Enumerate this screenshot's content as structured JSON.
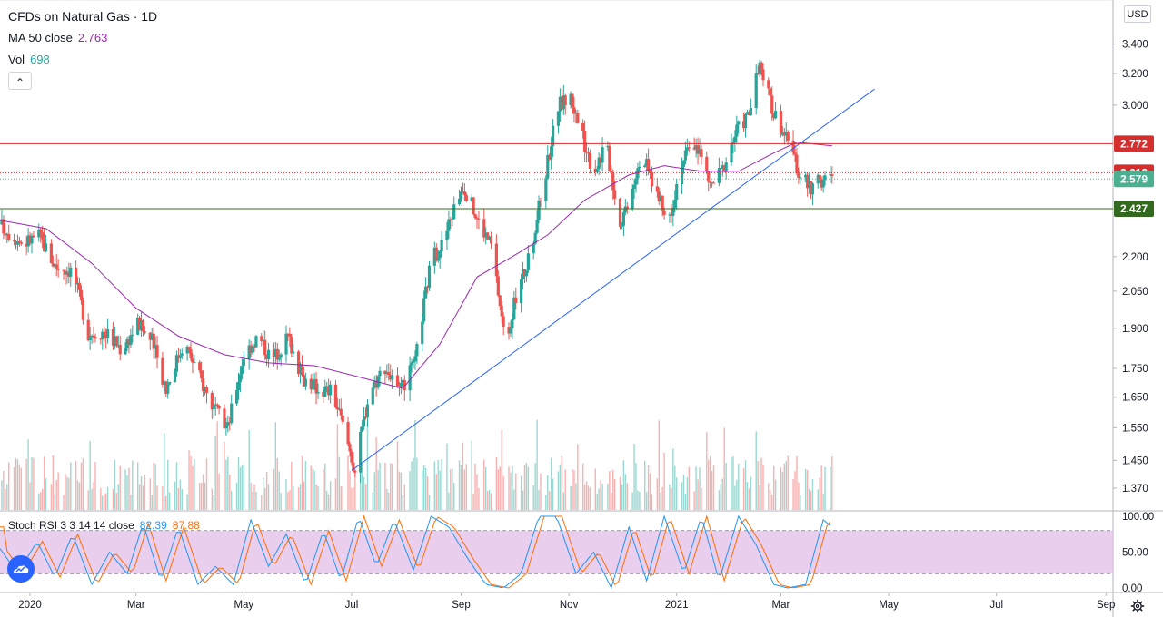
{
  "legend": {
    "title": "CFDs on Natural Gas · 1D",
    "ma_label": "MA 50 close",
    "ma_value": "2.763",
    "vol_label": "Vol",
    "vol_value": "698",
    "collapse_glyph": "⌃"
  },
  "currency": "USD",
  "stoch": {
    "label": "Stoch RSI 3 3 14 14 close",
    "k_value": "82.39",
    "d_value": "87.88"
  },
  "icons": {
    "logo": "tradingview-logo-icon",
    "settings": "gear-icon",
    "collapse": "chevron-up-icon"
  },
  "colors": {
    "up": "#26a69a",
    "down": "#ef5350",
    "ma": "#9c27b0",
    "trendline": "#2962ff",
    "resistance": "#d32f2f",
    "support": "#33691e",
    "stoch_k": "#2196f3",
    "stoch_d": "#ff6d00",
    "stoch_band": "#e1bee7"
  },
  "chart_data": [
    {
      "type": "candlestick",
      "title": "CFDs on Natural Gas · 1D",
      "price_ticks": [
        3.4,
        3.2,
        3.0,
        2.2,
        2.05,
        1.9,
        1.75,
        1.65,
        1.55,
        1.45,
        1.37
      ],
      "price_tick_labels": [
        "3.400",
        "3.200",
        "3.000",
        "2.200",
        "2.050",
        "1.900",
        "1.750",
        "1.650",
        "1.550",
        "1.450",
        "1.370"
      ],
      "y_scale": "log",
      "ylim": [
        1.31,
        3.72
      ],
      "x_tick_labels": [
        "2020",
        "Mar",
        "May",
        "Jul",
        "Sep",
        "Nov",
        "2021",
        "Mar",
        "May",
        "Jul",
        "Sep"
      ],
      "x_tick_dates": [
        "2020-01-01",
        "2020-03-01",
        "2020-05-01",
        "2020-07-01",
        "2020-09-01",
        "2020-11-01",
        "2021-01-01",
        "2021-03-01",
        "2021-05-01",
        "2021-07-01",
        "2021-09-01"
      ],
      "xlim": [
        "2019-12-15",
        "2021-09-05"
      ],
      "price_path": [
        [
          "2019-12-15",
          2.35
        ],
        [
          "2019-12-28",
          2.26
        ],
        [
          "2020-01-06",
          2.3
        ],
        [
          "2020-01-15",
          2.16
        ],
        [
          "2020-01-25",
          2.14
        ],
        [
          "2020-02-03",
          1.88
        ],
        [
          "2020-02-12",
          1.89
        ],
        [
          "2020-02-22",
          1.82
        ],
        [
          "2020-03-02",
          1.92
        ],
        [
          "2020-03-10",
          1.85
        ],
        [
          "2020-03-18",
          1.68
        ],
        [
          "2020-03-28",
          1.85
        ],
        [
          "2020-04-06",
          1.72
        ],
        [
          "2020-04-15",
          1.6
        ],
        [
          "2020-04-22",
          1.55
        ],
        [
          "2020-05-01",
          1.8
        ],
        [
          "2020-05-09",
          1.87
        ],
        [
          "2020-05-17",
          1.78
        ],
        [
          "2020-05-26",
          1.87
        ],
        [
          "2020-06-03",
          1.72
        ],
        [
          "2020-06-12",
          1.68
        ],
        [
          "2020-06-20",
          1.67
        ],
        [
          "2020-06-28",
          1.52
        ],
        [
          "2020-07-03",
          1.42
        ],
        [
          "2020-07-11",
          1.67
        ],
        [
          "2020-07-20",
          1.76
        ],
        [
          "2020-07-28",
          1.66
        ],
        [
          "2020-08-06",
          1.77
        ],
        [
          "2020-08-15",
          2.18
        ],
        [
          "2020-08-22",
          2.27
        ],
        [
          "2020-08-28",
          2.43
        ],
        [
          "2020-09-02",
          2.55
        ],
        [
          "2020-09-10",
          2.38
        ],
        [
          "2020-09-18",
          2.25
        ],
        [
          "2020-09-26",
          1.84
        ],
        [
          "2020-10-03",
          2.05
        ],
        [
          "2020-10-10",
          2.2
        ],
        [
          "2020-10-18",
          2.57
        ],
        [
          "2020-10-26",
          3.0
        ],
        [
          "2020-11-02",
          3.05
        ],
        [
          "2020-11-08",
          2.83
        ],
        [
          "2020-11-15",
          2.62
        ],
        [
          "2020-11-22",
          2.77
        ],
        [
          "2020-11-30",
          2.35
        ],
        [
          "2020-12-06",
          2.52
        ],
        [
          "2020-12-12",
          2.72
        ],
        [
          "2020-12-19",
          2.55
        ],
        [
          "2020-12-27",
          2.35
        ],
        [
          "2021-01-04",
          2.68
        ],
        [
          "2021-01-12",
          2.78
        ],
        [
          "2021-01-20",
          2.54
        ],
        [
          "2021-01-27",
          2.63
        ],
        [
          "2021-02-04",
          2.85
        ],
        [
          "2021-02-11",
          2.95
        ],
        [
          "2021-02-17",
          3.25
        ],
        [
          "2021-02-24",
          2.98
        ],
        [
          "2021-03-03",
          2.83
        ],
        [
          "2021-03-10",
          2.64
        ],
        [
          "2021-03-17",
          2.53
        ],
        [
          "2021-03-24",
          2.57
        ],
        [
          "2021-03-30",
          2.58
        ]
      ],
      "moving_average": {
        "name": "MA 50 close",
        "points": [
          [
            "2019-12-15",
            2.37
          ],
          [
            "2020-01-10",
            2.33
          ],
          [
            "2020-02-05",
            2.17
          ],
          [
            "2020-03-01",
            1.98
          ],
          [
            "2020-03-25",
            1.87
          ],
          [
            "2020-04-20",
            1.8
          ],
          [
            "2020-05-15",
            1.77
          ],
          [
            "2020-06-10",
            1.76
          ],
          [
            "2020-07-05",
            1.72
          ],
          [
            "2020-07-30",
            1.68
          ],
          [
            "2020-08-20",
            1.84
          ],
          [
            "2020-09-10",
            2.11
          ],
          [
            "2020-09-30",
            2.2
          ],
          [
            "2020-10-20",
            2.3
          ],
          [
            "2020-11-10",
            2.47
          ],
          [
            "2020-12-05",
            2.6
          ],
          [
            "2020-12-25",
            2.65
          ],
          [
            "2021-01-15",
            2.62
          ],
          [
            "2021-02-05",
            2.62
          ],
          [
            "2021-02-25",
            2.72
          ],
          [
            "2021-03-10",
            2.78
          ],
          [
            "2021-03-30",
            2.76
          ]
        ]
      },
      "trendline": {
        "start": [
          "2020-07-01",
          1.42
        ],
        "end": [
          "2021-04-23",
          3.1
        ]
      },
      "horizontal_levels": [
        {
          "value": 2.772,
          "label": "2.772",
          "color": "#d32f2f"
        },
        {
          "value": 2.612,
          "label": "2.612",
          "color": "#d32f2f"
        },
        {
          "value": 2.579,
          "label": "2.579",
          "color": "#4caf91"
        },
        {
          "value": 2.427,
          "label": "2.427",
          "color": "#33691e"
        }
      ],
      "volume": {
        "last": 698
      }
    },
    {
      "type": "line",
      "title": "Stoch RSI 3 3 14 14 close",
      "yticks": [
        100,
        50,
        0
      ],
      "ytick_labels": [
        "100.00",
        "50.00",
        "0.00"
      ],
      "ylim": [
        -5,
        105
      ],
      "bands": [
        80,
        20
      ],
      "series": [
        {
          "name": "K",
          "last": 82.39
        },
        {
          "name": "D",
          "last": 87.88
        }
      ],
      "profile": [
        [
          "2019-12-15",
          55
        ],
        [
          "2019-12-25",
          20
        ],
        [
          "2020-01-05",
          65
        ],
        [
          "2020-01-15",
          15
        ],
        [
          "2020-01-25",
          75
        ],
        [
          "2020-02-05",
          5
        ],
        [
          "2020-02-15",
          50
        ],
        [
          "2020-02-25",
          20
        ],
        [
          "2020-03-05",
          90
        ],
        [
          "2020-03-15",
          10
        ],
        [
          "2020-03-25",
          85
        ],
        [
          "2020-04-05",
          5
        ],
        [
          "2020-04-15",
          30
        ],
        [
          "2020-04-25",
          5
        ],
        [
          "2020-05-05",
          95
        ],
        [
          "2020-05-15",
          30
        ],
        [
          "2020-05-25",
          75
        ],
        [
          "2020-06-05",
          5
        ],
        [
          "2020-06-15",
          80
        ],
        [
          "2020-06-25",
          10
        ],
        [
          "2020-07-05",
          100
        ],
        [
          "2020-07-15",
          30
        ],
        [
          "2020-07-25",
          95
        ],
        [
          "2020-08-05",
          25
        ],
        [
          "2020-08-15",
          100
        ],
        [
          "2020-08-25",
          85
        ],
        [
          "2020-09-05",
          40
        ],
        [
          "2020-09-15",
          5
        ],
        [
          "2020-09-25",
          0
        ],
        [
          "2020-10-05",
          20
        ],
        [
          "2020-10-15",
          100
        ],
        [
          "2020-10-25",
          100
        ],
        [
          "2020-11-05",
          20
        ],
        [
          "2020-11-15",
          50
        ],
        [
          "2020-11-25",
          0
        ],
        [
          "2020-12-05",
          85
        ],
        [
          "2020-12-15",
          10
        ],
        [
          "2020-12-25",
          100
        ],
        [
          "2021-01-05",
          20
        ],
        [
          "2021-01-15",
          100
        ],
        [
          "2021-01-25",
          10
        ],
        [
          "2021-02-05",
          100
        ],
        [
          "2021-02-15",
          60
        ],
        [
          "2021-02-25",
          5
        ],
        [
          "2021-03-05",
          0
        ],
        [
          "2021-03-15",
          5
        ],
        [
          "2021-03-25",
          95
        ],
        [
          "2021-03-30",
          85
        ]
      ]
    }
  ]
}
